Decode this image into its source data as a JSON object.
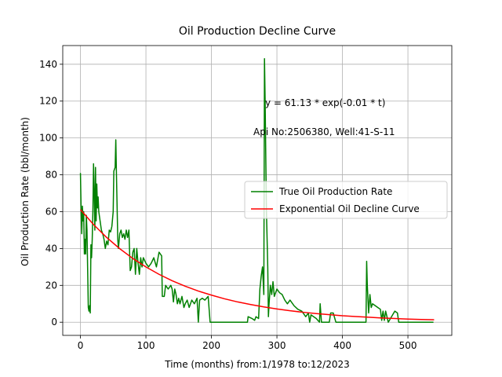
{
  "chart_data": {
    "type": "line",
    "title": "Oil Production Decline Curve",
    "xlabel": "Time (months) from:1/1978 to:12/2023",
    "ylabel": "Oil Production Rate (bbl/month)",
    "annotations": [
      "y = 61.13 * exp(-0.01 * t)",
      "Api No:2506380, Well:41-S-11"
    ],
    "xlim": [
      -27,
      567
    ],
    "ylim": [
      -7.15,
      150.15
    ],
    "xticks": [
      0,
      100,
      200,
      300,
      400,
      500
    ],
    "yticks": [
      0,
      20,
      40,
      60,
      80,
      100,
      120,
      140
    ],
    "grid": true,
    "legend": "center right",
    "series": [
      {
        "name": "True Oil Production Rate",
        "color": "#008000",
        "x": [
          0,
          1,
          2,
          3,
          4,
          5,
          6,
          7,
          8,
          9,
          10,
          12,
          13,
          14,
          15,
          16,
          17,
          18,
          19,
          20,
          21,
          22,
          23,
          24,
          25,
          26,
          27,
          28,
          30,
          32,
          34,
          36,
          38,
          40,
          42,
          44,
          46,
          48,
          50,
          51,
          53,
          54,
          55,
          57,
          58,
          60,
          62,
          64,
          66,
          68,
          70,
          72,
          74,
          76,
          78,
          80,
          82,
          84,
          86,
          88,
          90,
          92,
          94,
          96,
          100,
          104,
          108,
          112,
          116,
          120,
          124,
          125,
          128,
          130,
          134,
          138,
          140,
          142,
          144,
          146,
          148,
          150,
          152,
          155,
          158,
          160,
          163,
          166,
          170,
          174,
          178,
          180,
          182,
          186,
          190,
          195,
          198,
          210,
          230,
          255,
          256,
          262,
          266,
          268,
          272,
          274,
          276,
          278,
          280,
          281,
          282,
          284,
          286,
          287,
          288,
          290,
          292,
          294,
          296,
          300,
          304,
          308,
          312,
          316,
          320,
          326,
          332,
          338,
          344,
          348,
          350,
          352,
          360,
          365,
          366,
          368,
          380,
          382,
          386,
          390,
          420,
          436,
          437,
          438,
          440,
          442,
          444,
          446,
          450,
          454,
          458,
          460,
          462,
          464,
          466,
          470,
          480,
          484,
          486,
          500,
          539
        ],
        "values": [
          81,
          62,
          48,
          63,
          55,
          60,
          37,
          45,
          37,
          58,
          50,
          8,
          6,
          9,
          5,
          42,
          35,
          45,
          60,
          86,
          70,
          50,
          84,
          55,
          75,
          62,
          68,
          60,
          55,
          50,
          48,
          45,
          40,
          44,
          42,
          50,
          49,
          52,
          60,
          82,
          84,
          99,
          80,
          45,
          40,
          48,
          50,
          46,
          48,
          45,
          50,
          46,
          50,
          28,
          30,
          38,
          40,
          26,
          40,
          32,
          26,
          35,
          30,
          35,
          32,
          30,
          32,
          35,
          30,
          38,
          36,
          14,
          14,
          20,
          18,
          20,
          18,
          11,
          18,
          15,
          10,
          13,
          10,
          14,
          8,
          10,
          12,
          8,
          12,
          10,
          13,
          0,
          12,
          13,
          12,
          14,
          0,
          0,
          0,
          0,
          3,
          2,
          1,
          3,
          2,
          18,
          25,
          30,
          15,
          143,
          120,
          60,
          30,
          3,
          10,
          20,
          15,
          22,
          14,
          18,
          16,
          15,
          12,
          10,
          12,
          9,
          7,
          6,
          3,
          5,
          0,
          4,
          2,
          0,
          10,
          0,
          0,
          5,
          5,
          0,
          0,
          0,
          33,
          20,
          5,
          15,
          8,
          10,
          9,
          8,
          7,
          1,
          6,
          1,
          6,
          0,
          6,
          5,
          0,
          0,
          0
        ]
      },
      {
        "name": "Exponential Oil Decline Curve",
        "color": "#ff0000",
        "x": [
          0,
          20,
          40,
          60,
          80,
          100,
          120,
          140,
          160,
          180,
          200,
          220,
          240,
          260,
          280,
          300,
          320,
          340,
          360,
          380,
          400,
          420,
          440,
          460,
          480,
          500,
          520,
          540
        ],
        "values": [
          61.1,
          53.0,
          46.0,
          39.9,
          34.6,
          30.0,
          26.0,
          22.5,
          19.5,
          16.9,
          14.7,
          12.7,
          11.0,
          9.6,
          8.3,
          7.2,
          6.2,
          5.4,
          4.7,
          4.1,
          3.5,
          3.1,
          2.7,
          2.3,
          2.0,
          1.7,
          1.5,
          1.3
        ]
      }
    ]
  }
}
